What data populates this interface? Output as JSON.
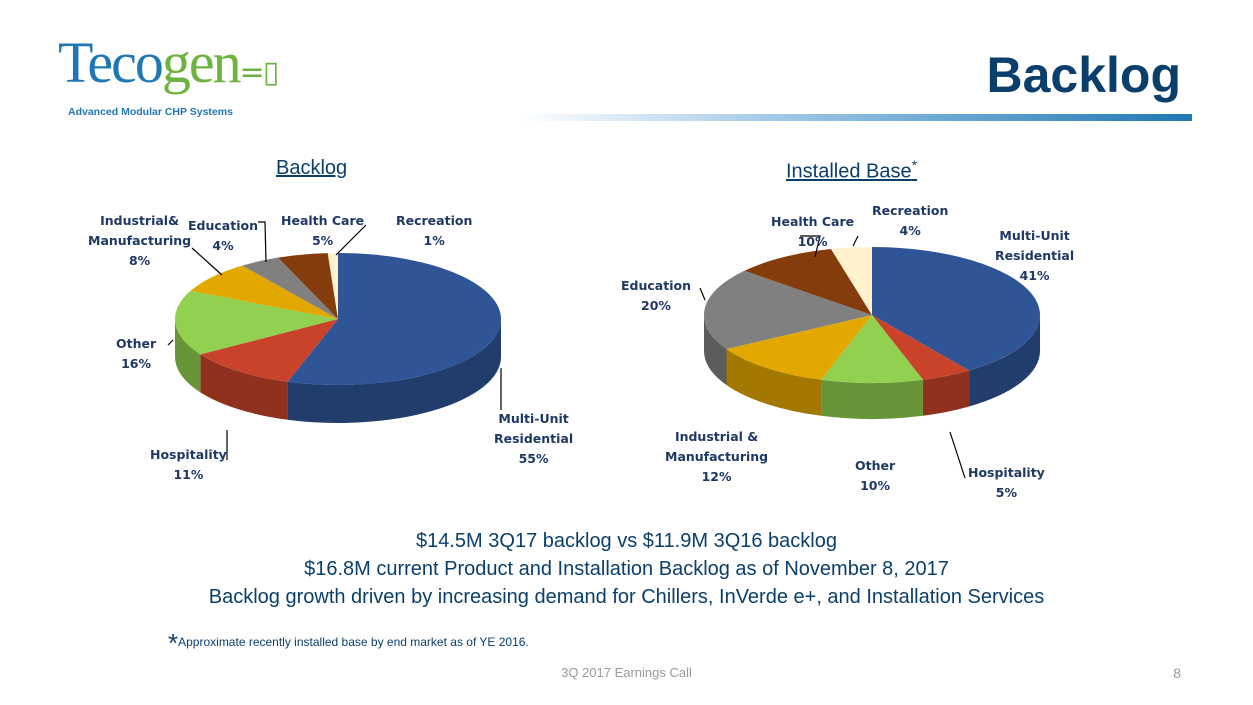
{
  "logo": {
    "word1": "Teco",
    "word2": "gen",
    "tagline": "Advanced Modular CHP Systems"
  },
  "title": "Backlog",
  "chart_data": [
    {
      "type": "pie",
      "title": "Backlog",
      "title_suffix": "",
      "categories": [
        "Multi-Unit Residential",
        "Hospitality",
        "Other",
        "Industrial & Manufacturing",
        "Education",
        "Health Care",
        "Recreation"
      ],
      "values": [
        55,
        11,
        16,
        8,
        4,
        5,
        1
      ],
      "labels": [
        "55%",
        "11%",
        "16%",
        "8%",
        "4%",
        "5%",
        "1%"
      ],
      "colors": [
        "#2F5597",
        "#C9432B",
        "#92D050",
        "#E3A800",
        "#808080",
        "#843C0C",
        "#FFF2CC"
      ]
    },
    {
      "type": "pie",
      "title": "Installed Base",
      "title_suffix": "*",
      "categories": [
        "Multi-Unit Residential",
        "Hospitality",
        "Other",
        "Industrial & Manufacturing",
        "Education",
        "Health Care",
        "Recreation"
      ],
      "values": [
        41,
        5,
        10,
        12,
        20,
        10,
        4
      ],
      "labels": [
        "41%",
        "5%",
        "10%",
        "12%",
        "20%",
        "10%",
        "4%"
      ],
      "colors": [
        "#2F5597",
        "#C9432B",
        "#92D050",
        "#E3A800",
        "#808080",
        "#843C0C",
        "#FFF2CC"
      ]
    }
  ],
  "summary": [
    "$14.5M 3Q17 backlog vs $11.9M 3Q16 backlog",
    "$16.8M current Product and Installation Backlog as of November 8, 2017",
    "Backlog growth driven by increasing demand for Chillers, InVerde e+, and Installation Services"
  ],
  "footnote": {
    "star": "*",
    "text": "Approximate recently installed base by end market as of YE 2016."
  },
  "footer": "3Q 2017 Earnings Call",
  "page": "8"
}
